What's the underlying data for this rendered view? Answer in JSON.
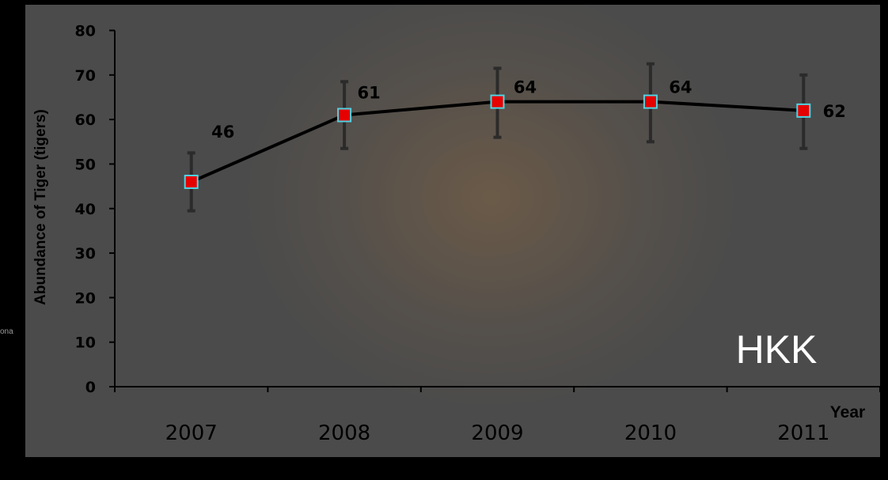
{
  "edge_text": "ona",
  "chart_data": {
    "type": "line",
    "title": "",
    "xlabel": "Year",
    "ylabel": "Abundance of Tiger (tigers)",
    "annotation": "HKK",
    "categories": [
      "2007",
      "2008",
      "2009",
      "2010",
      "2011"
    ],
    "series": [
      {
        "values": [
          46,
          61,
          64,
          64,
          62
        ],
        "error_low": [
          39.5,
          53.5,
          56,
          55,
          53.5
        ],
        "error_high": [
          52.5,
          68.5,
          71.5,
          72.5,
          70
        ]
      }
    ],
    "data_labels": [
      "46",
      "61",
      "64",
      "64",
      "62"
    ],
    "yticks": [
      "0",
      "10",
      "20",
      "30",
      "40",
      "50",
      "60",
      "70",
      "80"
    ],
    "ylim": [
      0,
      80
    ],
    "grid": false,
    "colors": {
      "line": "#000000",
      "marker": "#e60000",
      "marker_edge": "#4fd3e3",
      "error_bar": "#2b2b2b"
    }
  }
}
